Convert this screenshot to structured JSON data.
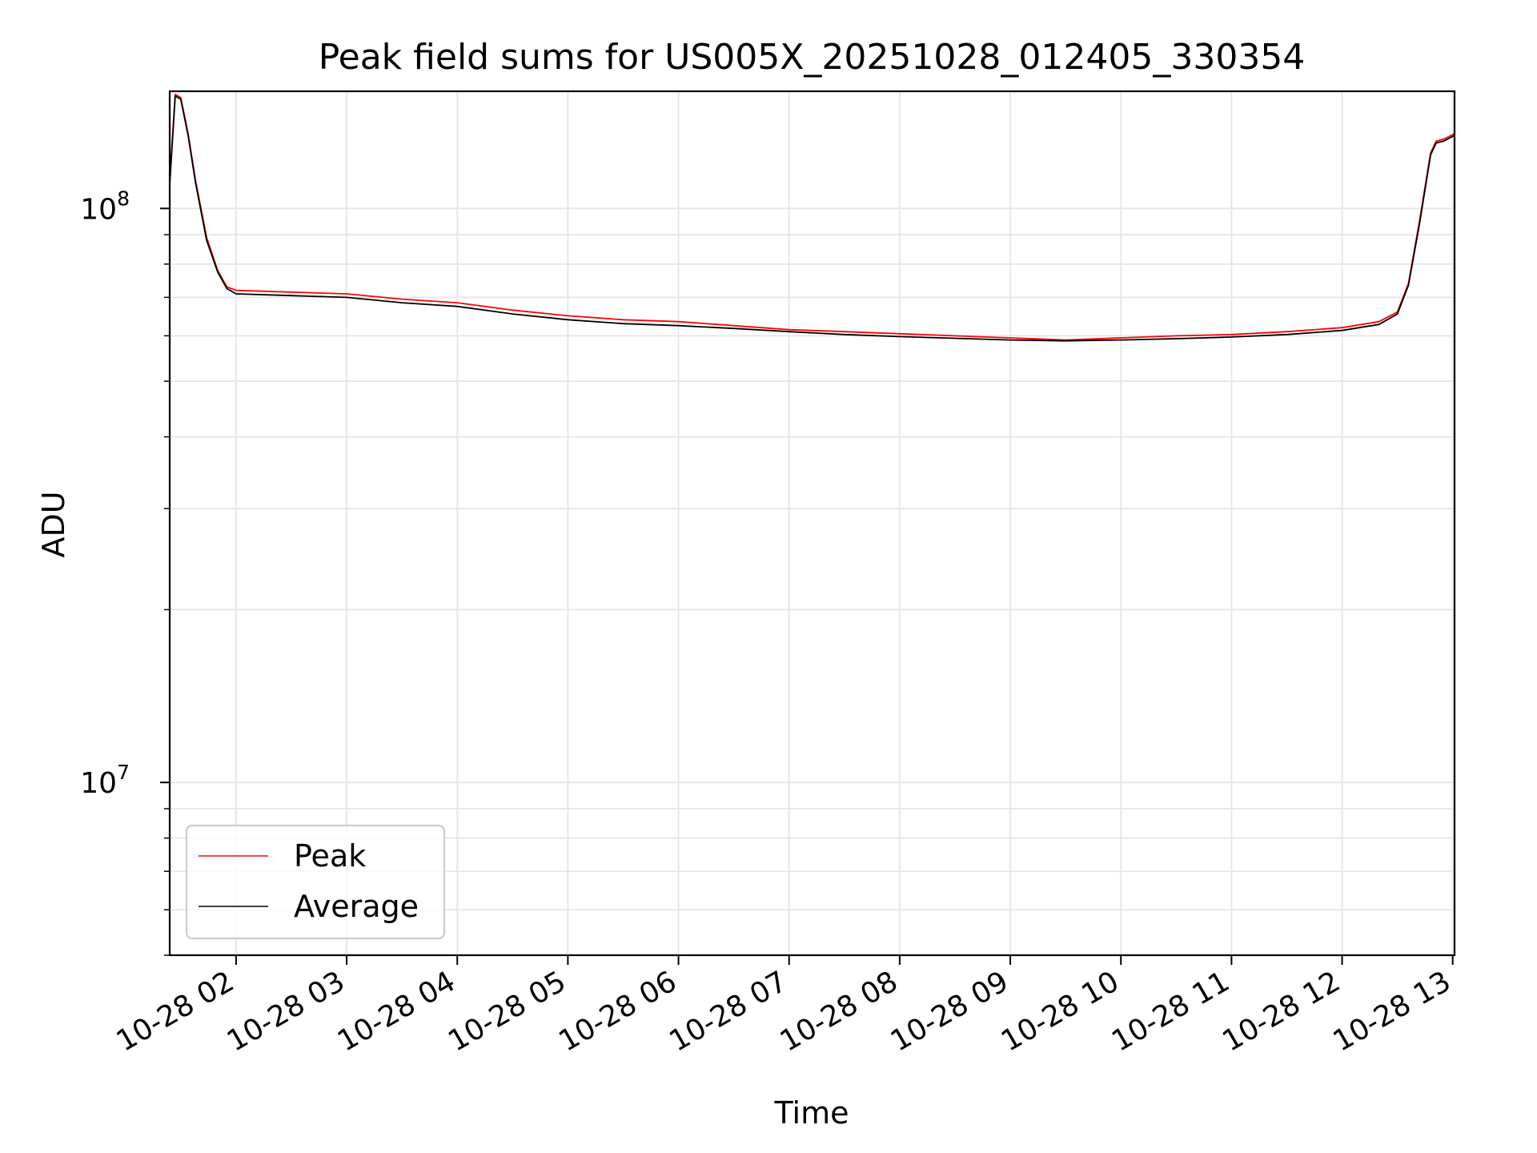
{
  "chart_data": {
    "type": "line",
    "title": "Peak field sums for US005X_20251028_012405_330354",
    "xlabel": "Time",
    "ylabel": "ADU",
    "y_scale": "log",
    "ylim": [
      5000000,
      160000000
    ],
    "xlim": [
      "2025-10-28 01:24",
      "2025-10-28 13:01"
    ],
    "x_ticks": [
      "10-28 02",
      "10-28 03",
      "10-28 04",
      "10-28 05",
      "10-28 06",
      "10-28 07",
      "10-28 08",
      "10-28 09",
      "10-28 10",
      "10-28 11",
      "10-28 12",
      "10-28 13"
    ],
    "y_ticks": [
      {
        "value": 10000000,
        "base": "10",
        "exponent": "7"
      },
      {
        "value": 100000000,
        "base": "10",
        "exponent": "8"
      }
    ],
    "grid": true,
    "legend_position": "lower-left",
    "x": [
      "2025-10-28 01:24",
      "2025-10-28 01:27",
      "2025-10-28 01:30",
      "2025-10-28 01:34",
      "2025-10-28 01:38",
      "2025-10-28 01:44",
      "2025-10-28 01:50",
      "2025-10-28 01:55",
      "2025-10-28 02:00",
      "2025-10-28 02:30",
      "2025-10-28 03:00",
      "2025-10-28 03:30",
      "2025-10-28 04:00",
      "2025-10-28 04:30",
      "2025-10-28 05:00",
      "2025-10-28 05:30",
      "2025-10-28 06:00",
      "2025-10-28 06:30",
      "2025-10-28 07:00",
      "2025-10-28 07:30",
      "2025-10-28 08:00",
      "2025-10-28 08:30",
      "2025-10-28 09:00",
      "2025-10-28 09:30",
      "2025-10-28 10:00",
      "2025-10-28 10:30",
      "2025-10-28 11:00",
      "2025-10-28 11:30",
      "2025-10-28 12:00",
      "2025-10-28 12:20",
      "2025-10-28 12:30",
      "2025-10-28 12:36",
      "2025-10-28 12:42",
      "2025-10-28 12:48",
      "2025-10-28 12:51",
      "2025-10-28 12:55",
      "2025-10-28 13:01"
    ],
    "series": [
      {
        "name": "Peak",
        "color": "#ff0000",
        "values": [
          112000000,
          158000000,
          156000000,
          135000000,
          112000000,
          89000000,
          78000000,
          73000000,
          72000000,
          71500000,
          71000000,
          69500000,
          68500000,
          66500000,
          65000000,
          64000000,
          63500000,
          62500000,
          61500000,
          61000000,
          60500000,
          60000000,
          59500000,
          59000000,
          59500000,
          60000000,
          60300000,
          61000000,
          62000000,
          63500000,
          66000000,
          74000000,
          95000000,
          125000000,
          131000000,
          132000000,
          135000000
        ]
      },
      {
        "name": "Average",
        "color": "#000000",
        "values": [
          110000000,
          157000000,
          155000000,
          134000000,
          111000000,
          88000000,
          77500000,
          72500000,
          71000000,
          70500000,
          70000000,
          68500000,
          67500000,
          65500000,
          64000000,
          63000000,
          62500000,
          61800000,
          61000000,
          60300000,
          59800000,
          59400000,
          59000000,
          58800000,
          59000000,
          59300000,
          59700000,
          60300000,
          61300000,
          62800000,
          65500000,
          73500000,
          94000000,
          124000000,
          130000000,
          131000000,
          134000000
        ]
      }
    ]
  }
}
